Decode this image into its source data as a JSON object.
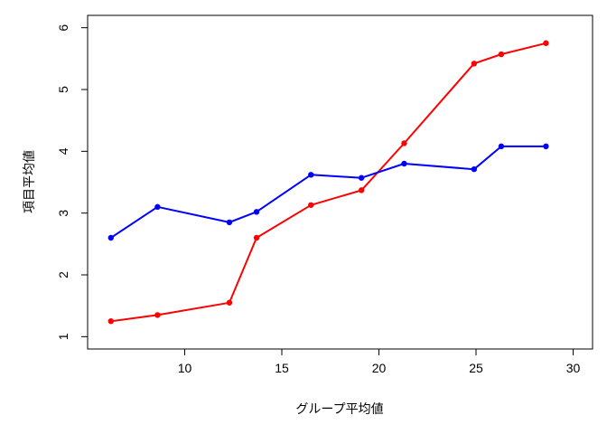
{
  "chart_data": {
    "type": "line",
    "title": "",
    "xlabel": "グループ平均値",
    "ylabel": "項目平均値",
    "xlim": [
      5,
      31
    ],
    "ylim": [
      0.8,
      6.2
    ],
    "xticks": [
      10,
      15,
      20,
      25,
      30
    ],
    "yticks": [
      1,
      2,
      3,
      4,
      5,
      6
    ],
    "grid": false,
    "legend": "none",
    "series": [
      {
        "color": "#ff0000",
        "x": [
          6.2,
          8.6,
          12.3,
          13.7,
          16.5,
          19.1,
          21.3,
          24.9,
          26.3,
          28.6
        ],
        "y": [
          1.25,
          1.35,
          1.55,
          2.6,
          3.13,
          3.37,
          4.13,
          5.42,
          5.57,
          5.75
        ]
      },
      {
        "color": "#0000ff",
        "x": [
          6.2,
          8.6,
          12.3,
          13.7,
          16.5,
          19.1,
          21.3,
          24.9,
          26.3,
          28.6
        ],
        "y": [
          2.6,
          3.1,
          2.85,
          3.02,
          3.62,
          3.57,
          3.8,
          3.71,
          4.08,
          4.08
        ]
      }
    ]
  }
}
